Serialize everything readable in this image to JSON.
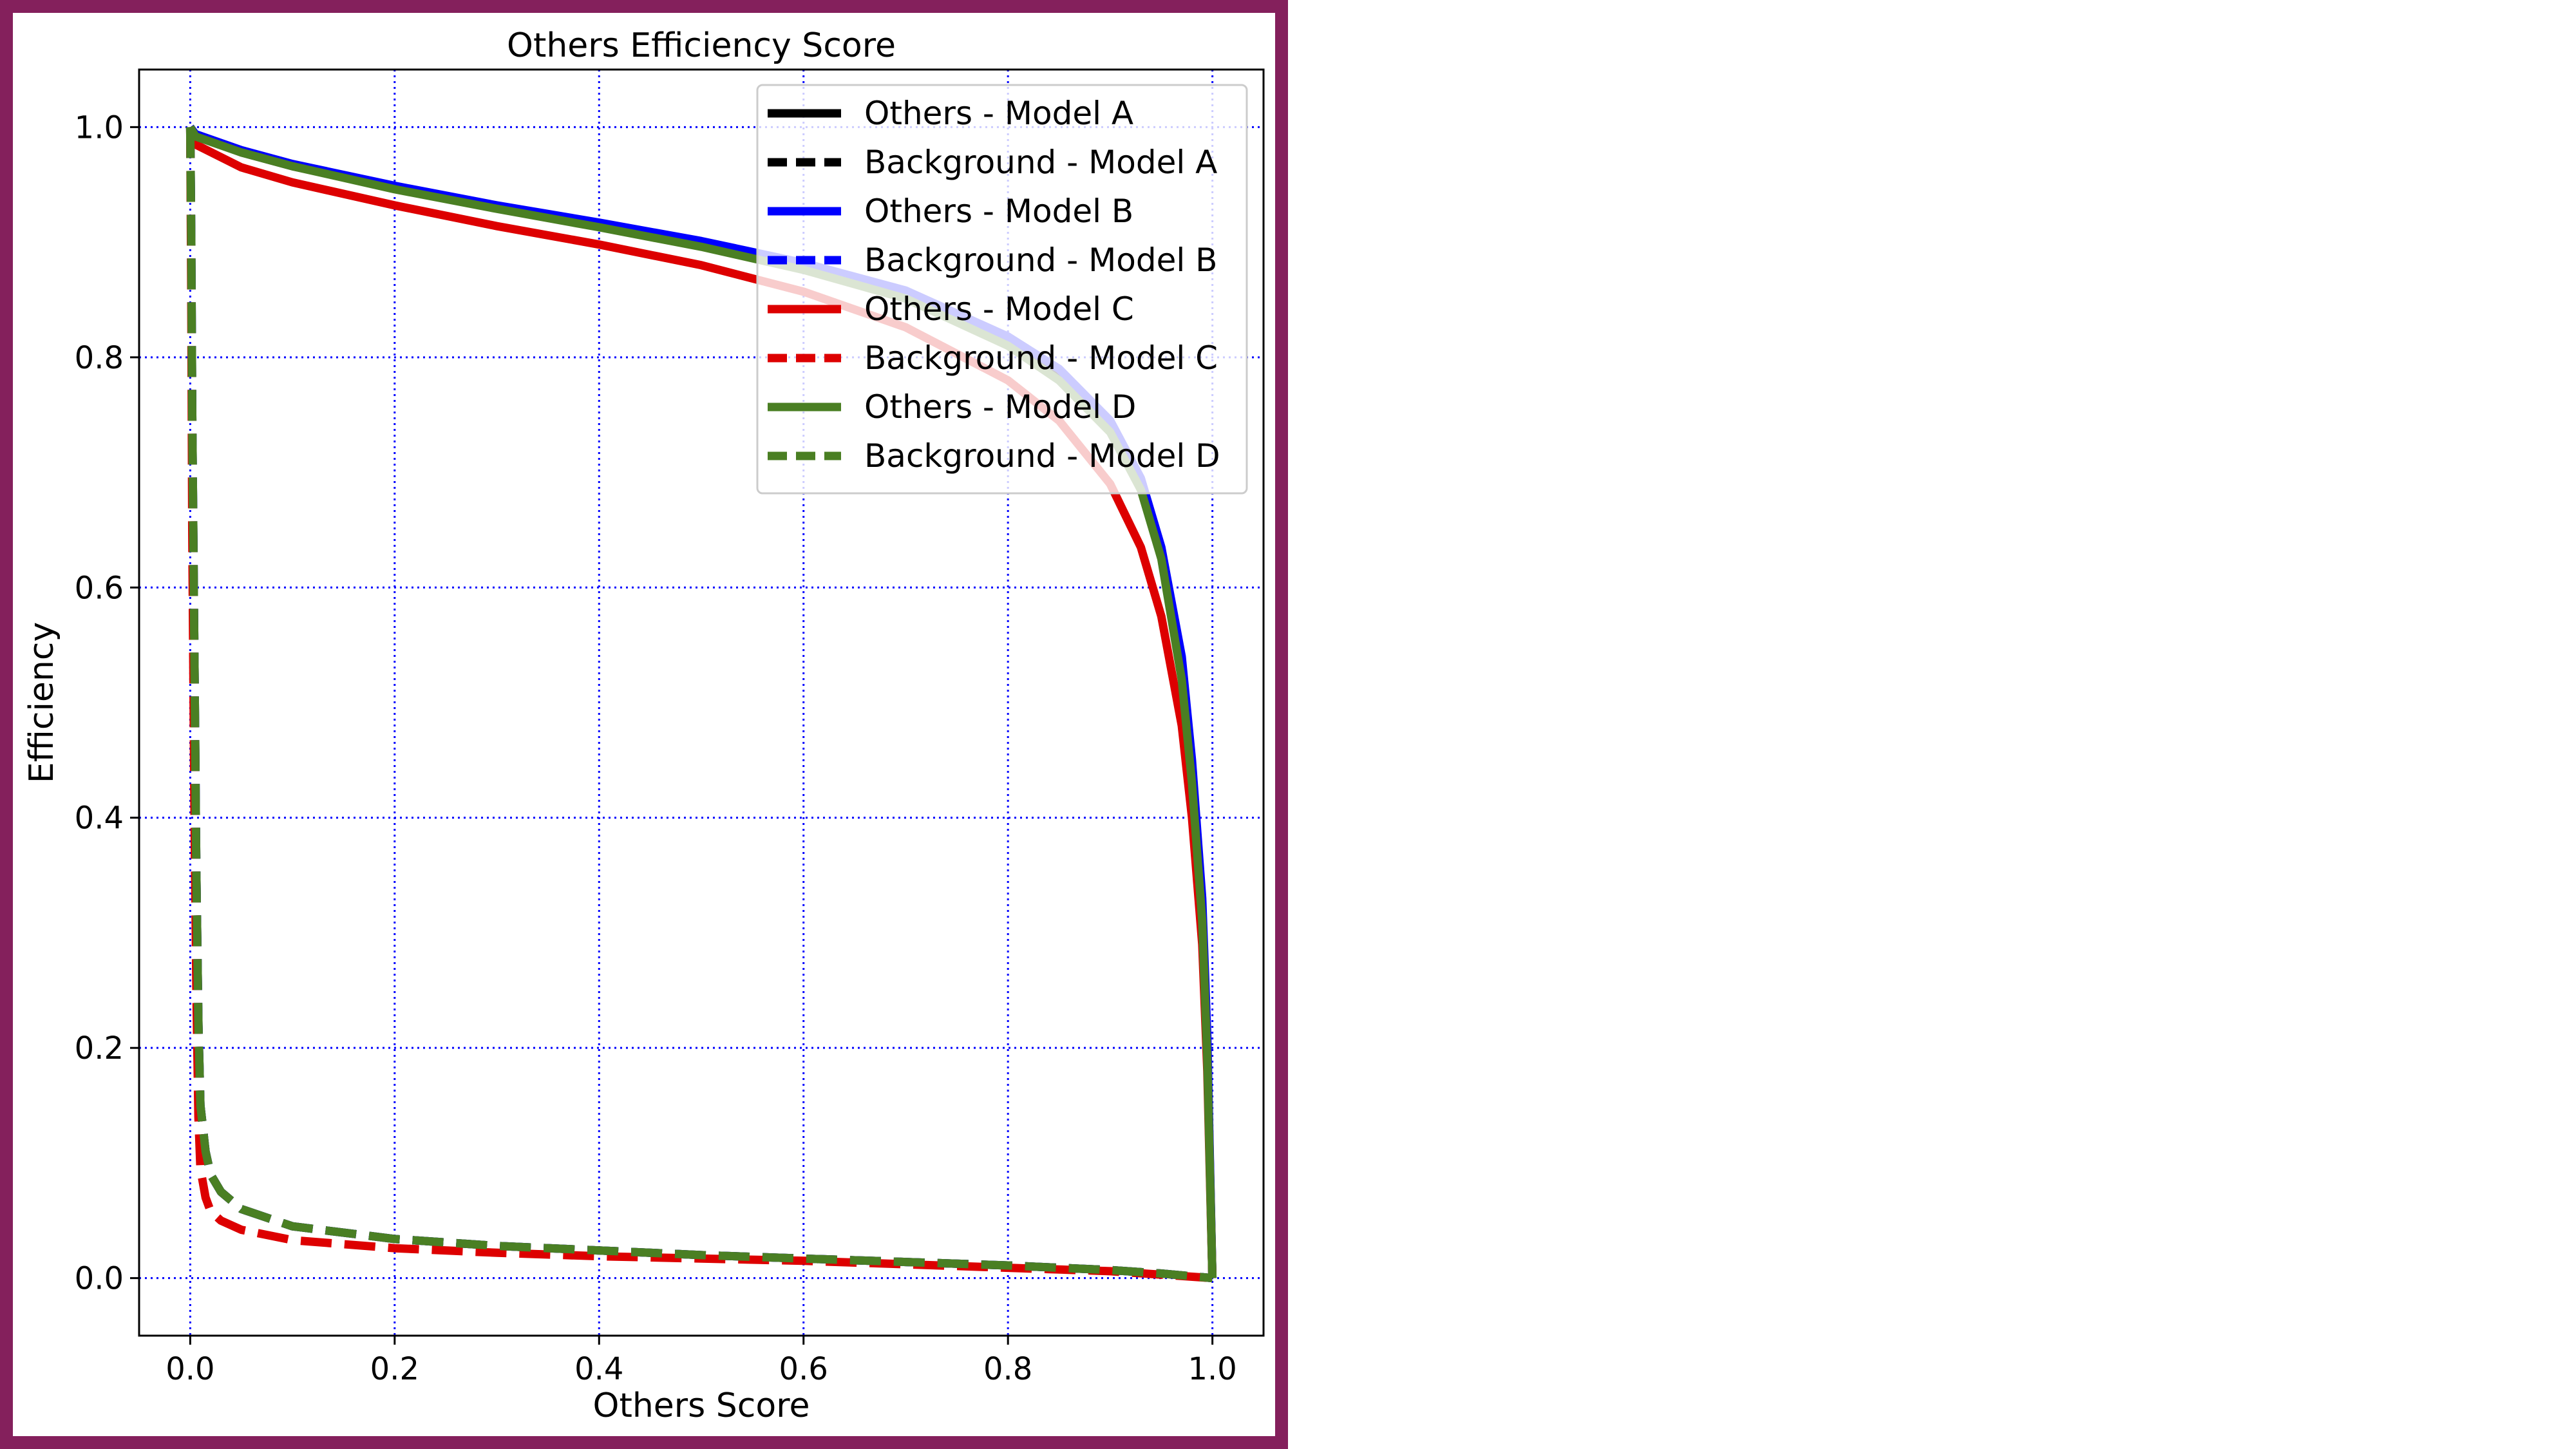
{
  "frame": {
    "border_color": "#84205c"
  },
  "chart_data": {
    "type": "line",
    "title": "Others Efficiency Score",
    "xlabel": "Others Score",
    "ylabel": "Efficiency",
    "xlim": [
      -0.05,
      1.05
    ],
    "ylim": [
      -0.05,
      1.05
    ],
    "xticks": [
      0.0,
      0.2,
      0.4,
      0.6,
      0.8,
      1.0
    ],
    "yticks": [
      0.0,
      0.2,
      0.4,
      0.6,
      0.8,
      1.0
    ],
    "xtick_labels": [
      "0.0",
      "0.2",
      "0.4",
      "0.6",
      "0.8",
      "1.0"
    ],
    "ytick_labels": [
      "0.0",
      "0.2",
      "0.4",
      "0.6",
      "0.8",
      "1.0"
    ],
    "grid": true,
    "grid_style": "dotted",
    "grid_color": "#0000ff",
    "legend_position": "top-right",
    "series": [
      {
        "name": "Others - Model A",
        "color": "#000000",
        "linestyle": "solid",
        "x": [
          0.0,
          0.005,
          0.05,
          0.1,
          0.2,
          0.3,
          0.4,
          0.5,
          0.6,
          0.7,
          0.8,
          0.85,
          0.9,
          0.93,
          0.95,
          0.97,
          0.98,
          0.99,
          0.995,
          1.0
        ],
        "y": [
          1.0,
          0.993,
          0.978,
          0.966,
          0.947,
          0.93,
          0.915,
          0.899,
          0.88,
          0.855,
          0.815,
          0.785,
          0.74,
          0.69,
          0.63,
          0.53,
          0.44,
          0.32,
          0.2,
          0.0
        ]
      },
      {
        "name": "Background - Model A",
        "color": "#000000",
        "linestyle": "dashed",
        "x": [
          0.0,
          0.001,
          0.002,
          0.004,
          0.006,
          0.008,
          0.01,
          0.015,
          0.02,
          0.03,
          0.05,
          0.1,
          0.2,
          0.3,
          0.4,
          0.5,
          0.6,
          0.7,
          0.8,
          0.9,
          0.95,
          1.0
        ],
        "y": [
          1.0,
          0.9,
          0.75,
          0.55,
          0.35,
          0.22,
          0.15,
          0.11,
          0.09,
          0.075,
          0.06,
          0.045,
          0.034,
          0.028,
          0.024,
          0.02,
          0.017,
          0.014,
          0.011,
          0.007,
          0.004,
          0.0
        ]
      },
      {
        "name": "Others - Model B",
        "color": "#0000ff",
        "linestyle": "solid",
        "x": [
          0.0,
          0.005,
          0.05,
          0.1,
          0.2,
          0.3,
          0.4,
          0.5,
          0.6,
          0.7,
          0.8,
          0.85,
          0.9,
          0.93,
          0.95,
          0.97,
          0.98,
          0.99,
          0.995,
          1.0
        ],
        "y": [
          1.0,
          0.994,
          0.98,
          0.968,
          0.949,
          0.932,
          0.917,
          0.901,
          0.882,
          0.858,
          0.818,
          0.79,
          0.745,
          0.695,
          0.635,
          0.54,
          0.45,
          0.33,
          0.21,
          0.0
        ]
      },
      {
        "name": "Background - Model B",
        "color": "#0000ff",
        "linestyle": "dashed",
        "x": [
          0.0,
          0.001,
          0.002,
          0.004,
          0.006,
          0.008,
          0.01,
          0.015,
          0.02,
          0.03,
          0.05,
          0.1,
          0.2,
          0.3,
          0.4,
          0.5,
          0.6,
          0.7,
          0.8,
          0.9,
          0.95,
          1.0
        ],
        "y": [
          1.0,
          0.9,
          0.75,
          0.55,
          0.35,
          0.22,
          0.15,
          0.11,
          0.09,
          0.075,
          0.06,
          0.045,
          0.034,
          0.028,
          0.024,
          0.02,
          0.017,
          0.014,
          0.011,
          0.007,
          0.004,
          0.0
        ]
      },
      {
        "name": "Others - Model C",
        "color": "#dd0000",
        "linestyle": "solid",
        "x": [
          0.0,
          0.005,
          0.05,
          0.1,
          0.2,
          0.3,
          0.4,
          0.5,
          0.6,
          0.7,
          0.8,
          0.85,
          0.9,
          0.93,
          0.95,
          0.97,
          0.98,
          0.99,
          0.995,
          1.0
        ],
        "y": [
          1.0,
          0.985,
          0.965,
          0.952,
          0.932,
          0.914,
          0.898,
          0.88,
          0.857,
          0.826,
          0.78,
          0.745,
          0.69,
          0.635,
          0.575,
          0.48,
          0.4,
          0.29,
          0.18,
          0.0
        ]
      },
      {
        "name": "Background - Model C",
        "color": "#dd0000",
        "linestyle": "dashed",
        "x": [
          0.0,
          0.001,
          0.002,
          0.004,
          0.006,
          0.008,
          0.01,
          0.015,
          0.02,
          0.03,
          0.05,
          0.1,
          0.2,
          0.3,
          0.4,
          0.5,
          0.6,
          0.7,
          0.8,
          0.9,
          0.95,
          1.0
        ],
        "y": [
          1.0,
          0.85,
          0.65,
          0.42,
          0.25,
          0.14,
          0.095,
          0.07,
          0.058,
          0.05,
          0.042,
          0.033,
          0.026,
          0.022,
          0.019,
          0.017,
          0.015,
          0.012,
          0.009,
          0.006,
          0.003,
          0.0
        ]
      },
      {
        "name": "Others - Model D",
        "color": "#4a7f23",
        "linestyle": "solid",
        "x": [
          0.0,
          0.005,
          0.05,
          0.1,
          0.2,
          0.3,
          0.4,
          0.5,
          0.6,
          0.7,
          0.8,
          0.85,
          0.9,
          0.93,
          0.95,
          0.97,
          0.98,
          0.99,
          0.995,
          1.0
        ],
        "y": [
          1.0,
          0.992,
          0.978,
          0.966,
          0.946,
          0.929,
          0.913,
          0.896,
          0.876,
          0.851,
          0.81,
          0.78,
          0.735,
          0.685,
          0.625,
          0.52,
          0.43,
          0.31,
          0.19,
          0.0
        ]
      },
      {
        "name": "Background - Model D",
        "color": "#4a7f23",
        "linestyle": "dashed",
        "x": [
          0.0,
          0.001,
          0.002,
          0.004,
          0.006,
          0.008,
          0.01,
          0.015,
          0.02,
          0.03,
          0.05,
          0.1,
          0.2,
          0.3,
          0.4,
          0.5,
          0.6,
          0.7,
          0.8,
          0.9,
          0.95,
          1.0
        ],
        "y": [
          1.0,
          0.9,
          0.75,
          0.55,
          0.35,
          0.22,
          0.15,
          0.11,
          0.09,
          0.075,
          0.06,
          0.045,
          0.034,
          0.028,
          0.024,
          0.02,
          0.017,
          0.014,
          0.011,
          0.007,
          0.004,
          0.0
        ]
      }
    ]
  }
}
